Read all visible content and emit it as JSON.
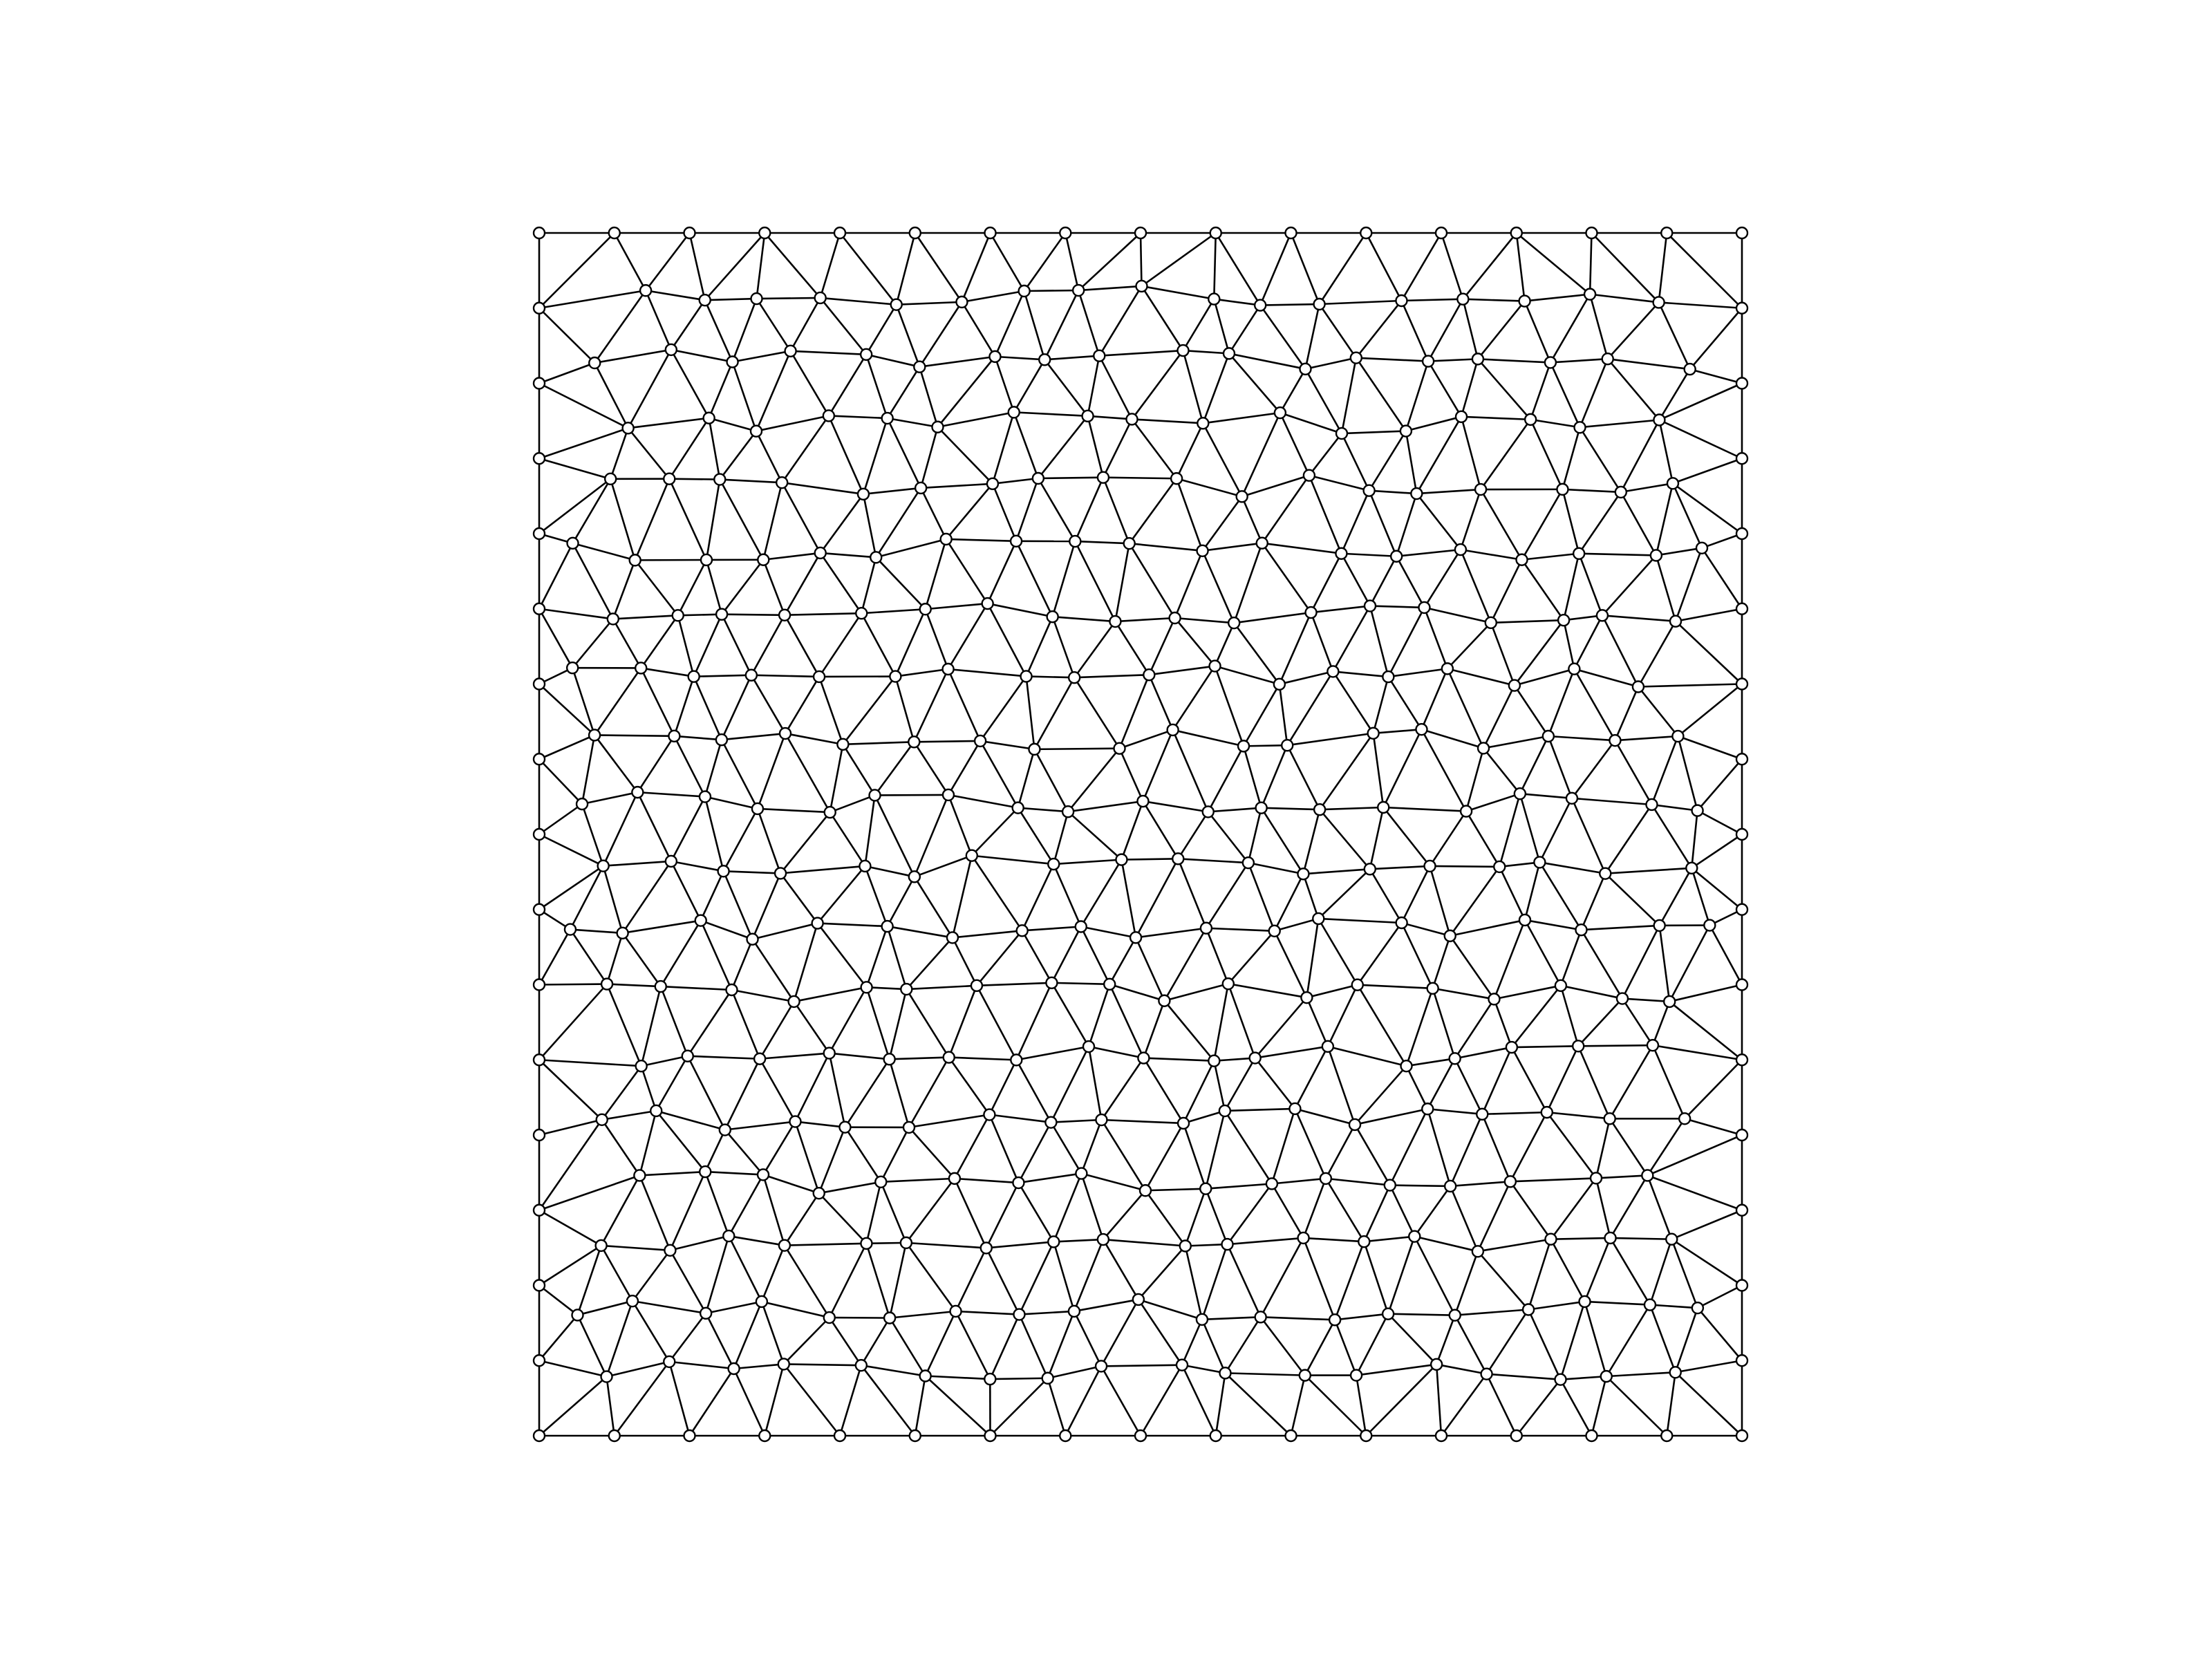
{
  "diagram": {
    "kind": "triangular-mesh",
    "description_visible_text": "",
    "domain": {
      "x": [
        0,
        1
      ],
      "y": [
        0,
        1
      ]
    },
    "boundary_nodes_per_side": 17,
    "approx_interior_grid": {
      "cols": 19,
      "rows": 18
    },
    "line_color": "#000000",
    "node_fill": "#ffffff",
    "node_stroke": "#000000",
    "background": "#ffffff"
  }
}
